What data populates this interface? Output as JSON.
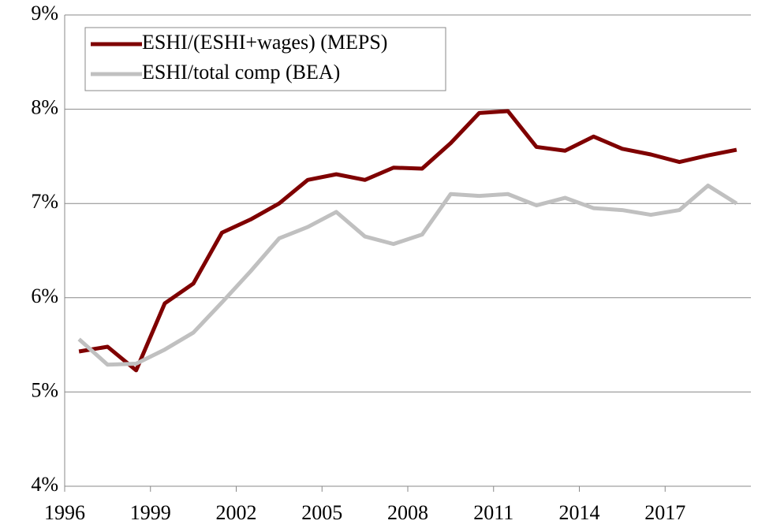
{
  "chart_data": {
    "type": "line",
    "categories": [
      "1996",
      null,
      null,
      "1999",
      null,
      null,
      "2002",
      null,
      null,
      "2005",
      null,
      null,
      "2008",
      null,
      null,
      "2011",
      null,
      null,
      "2014",
      null,
      null,
      "2017",
      null,
      null
    ],
    "series": [
      {
        "name": "ESHI/(ESHI+wages) (MEPS)",
        "color": "#7f0000",
        "values": [
          5.43,
          5.48,
          5.23,
          5.94,
          6.15,
          6.69,
          6.83,
          7.0,
          7.25,
          7.31,
          7.25,
          7.38,
          7.37,
          7.64,
          7.96,
          7.98,
          7.6,
          7.56,
          7.71,
          7.58,
          7.52,
          7.44,
          7.51,
          7.57
        ]
      },
      {
        "name": "ESHI/total comp (BEA)",
        "color": "#c0c0c0",
        "values": [
          5.56,
          5.29,
          5.3,
          5.45,
          5.63,
          5.95,
          6.28,
          6.63,
          6.75,
          6.91,
          6.65,
          6.57,
          6.67,
          7.1,
          7.08,
          7.1,
          6.98,
          7.06,
          6.95,
          6.93,
          6.88,
          6.93,
          7.19,
          7.0
        ]
      }
    ],
    "ylim": [
      4,
      9
    ],
    "yticks": [
      {
        "value": 4,
        "label": "4%"
      },
      {
        "value": 5,
        "label": "5%"
      },
      {
        "value": 6,
        "label": "6%"
      },
      {
        "value": 7,
        "label": "7%"
      },
      {
        "value": 8,
        "label": "8%"
      },
      {
        "value": 9,
        "label": "9%"
      }
    ],
    "grid": true,
    "legend": "upper left"
  }
}
